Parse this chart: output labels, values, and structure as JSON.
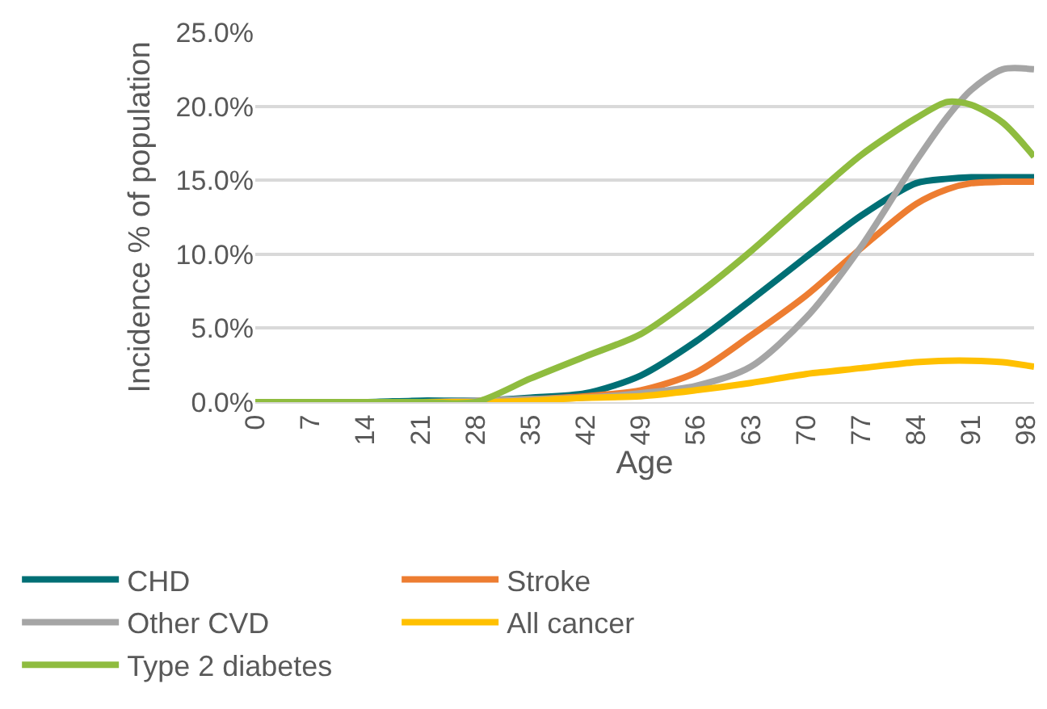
{
  "chart_data": {
    "type": "line",
    "xlabel": "Age",
    "ylabel": "Incidence % of population",
    "x": [
      0,
      7,
      14,
      21,
      28,
      35,
      42,
      49,
      56,
      63,
      70,
      77,
      84,
      88,
      91,
      95,
      99
    ],
    "series": [
      {
        "name": "CHD",
        "color": "#006f75",
        "values": [
          0,
          0,
          0,
          0.1,
          0.1,
          0.3,
          0.6,
          1.8,
          4.1,
          6.9,
          9.8,
          12.6,
          14.8,
          15.1,
          15.2,
          15.2,
          15.2
        ]
      },
      {
        "name": "Stroke",
        "color": "#ed7d31",
        "values": [
          null,
          null,
          null,
          null,
          0.1,
          0.2,
          0.4,
          0.8,
          2.0,
          4.5,
          7.2,
          10.4,
          13.4,
          14.4,
          14.8,
          14.9,
          14.9
        ]
      },
      {
        "name": "Other CVD",
        "color": "#a5a5a5",
        "values": [
          0,
          0,
          0,
          0,
          0.1,
          0.2,
          0.3,
          0.6,
          1.1,
          2.4,
          5.7,
          10.5,
          16.3,
          19.3,
          21.1,
          22.5,
          22.5
        ]
      },
      {
        "name": "All cancer",
        "color": "#ffc000",
        "values": [
          null,
          null,
          0,
          0,
          0,
          0.1,
          0.3,
          0.4,
          0.8,
          1.3,
          1.9,
          2.3,
          2.7,
          2.8,
          2.8,
          2.7,
          2.4
        ]
      },
      {
        "name": "Type 2 diabetes",
        "color": "#8fbc3f",
        "values": [
          0,
          0,
          0,
          0,
          0,
          1.6,
          3.1,
          4.6,
          7.2,
          10.2,
          13.5,
          16.7,
          19.2,
          20.3,
          20.1,
          18.9,
          16.6
        ]
      }
    ],
    "xlim": [
      0,
      99
    ],
    "xticks": [
      0,
      7,
      14,
      21,
      28,
      35,
      42,
      49,
      56,
      63,
      70,
      77,
      84,
      91,
      98
    ],
    "ylim": [
      0,
      25
    ],
    "yticks": [
      {
        "value": 0,
        "label": "0.0%"
      },
      {
        "value": 5,
        "label": "5.0%"
      },
      {
        "value": 10,
        "label": "10.0%"
      },
      {
        "value": 15,
        "label": "15.0%"
      },
      {
        "value": 20,
        "label": "20.0%"
      },
      {
        "value": 25,
        "label": "25.0%"
      }
    ],
    "grid": "y",
    "legend": "bottom"
  }
}
